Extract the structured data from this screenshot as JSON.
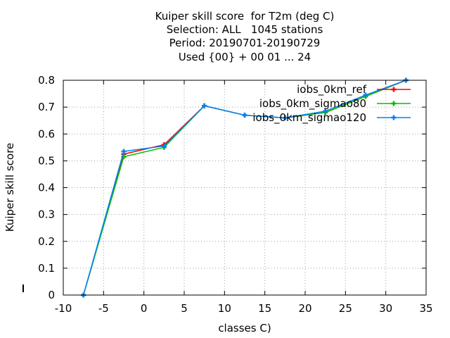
{
  "chart_data": {
    "type": "line",
    "title_lines": [
      "Kuiper skill score  for T2m (deg C)",
      "Selection: ALL   1045 stations",
      "Period: 20190701-20190729",
      "Used {00} + 00 01 ... 24"
    ],
    "xlabel": "classes C)",
    "ylabel": "Kuiper skill score",
    "xlim": [
      -10,
      35
    ],
    "ylim": [
      0,
      0.8
    ],
    "xticks": [
      -10,
      -5,
      0,
      5,
      10,
      15,
      20,
      25,
      30,
      35
    ],
    "xtick_labels": [
      "-10",
      "-5",
      "0",
      "5",
      "10",
      "15",
      "20",
      "25",
      "30",
      "35"
    ],
    "yticks": [
      0,
      0.1,
      0.2,
      0.3,
      0.4,
      0.5,
      0.6,
      0.7,
      0.8
    ],
    "ytick_labels": [
      "0",
      "0.1",
      "0.2",
      "0.3",
      "0.4",
      "0.5",
      "0.6",
      "0.7",
      "0.8"
    ],
    "grid": true,
    "legend_position": "top-right",
    "x": [
      -7.5,
      -2.5,
      2.5,
      7.5,
      12.5,
      17.5,
      22.5,
      27.5,
      32.5
    ],
    "series": [
      {
        "name": "iobs_0km_ref",
        "color": "#ff0000",
        "marker": "cross",
        "values": [
          0.0,
          0.525,
          0.56,
          0.705,
          0.67,
          0.66,
          0.68,
          0.74,
          0.8
        ]
      },
      {
        "name": "iobs_0km_sigmao80",
        "color": "#00c000",
        "marker": "cross",
        "values": [
          0.0,
          0.515,
          0.55,
          0.705,
          0.67,
          0.66,
          0.68,
          0.74,
          0.8
        ]
      },
      {
        "name": "iobs_0km_sigmao120",
        "color": "#0080ff",
        "marker": "cross",
        "values": [
          0.0,
          0.535,
          0.555,
          0.705,
          0.67,
          0.66,
          0.685,
          0.745,
          0.8
        ]
      }
    ]
  }
}
